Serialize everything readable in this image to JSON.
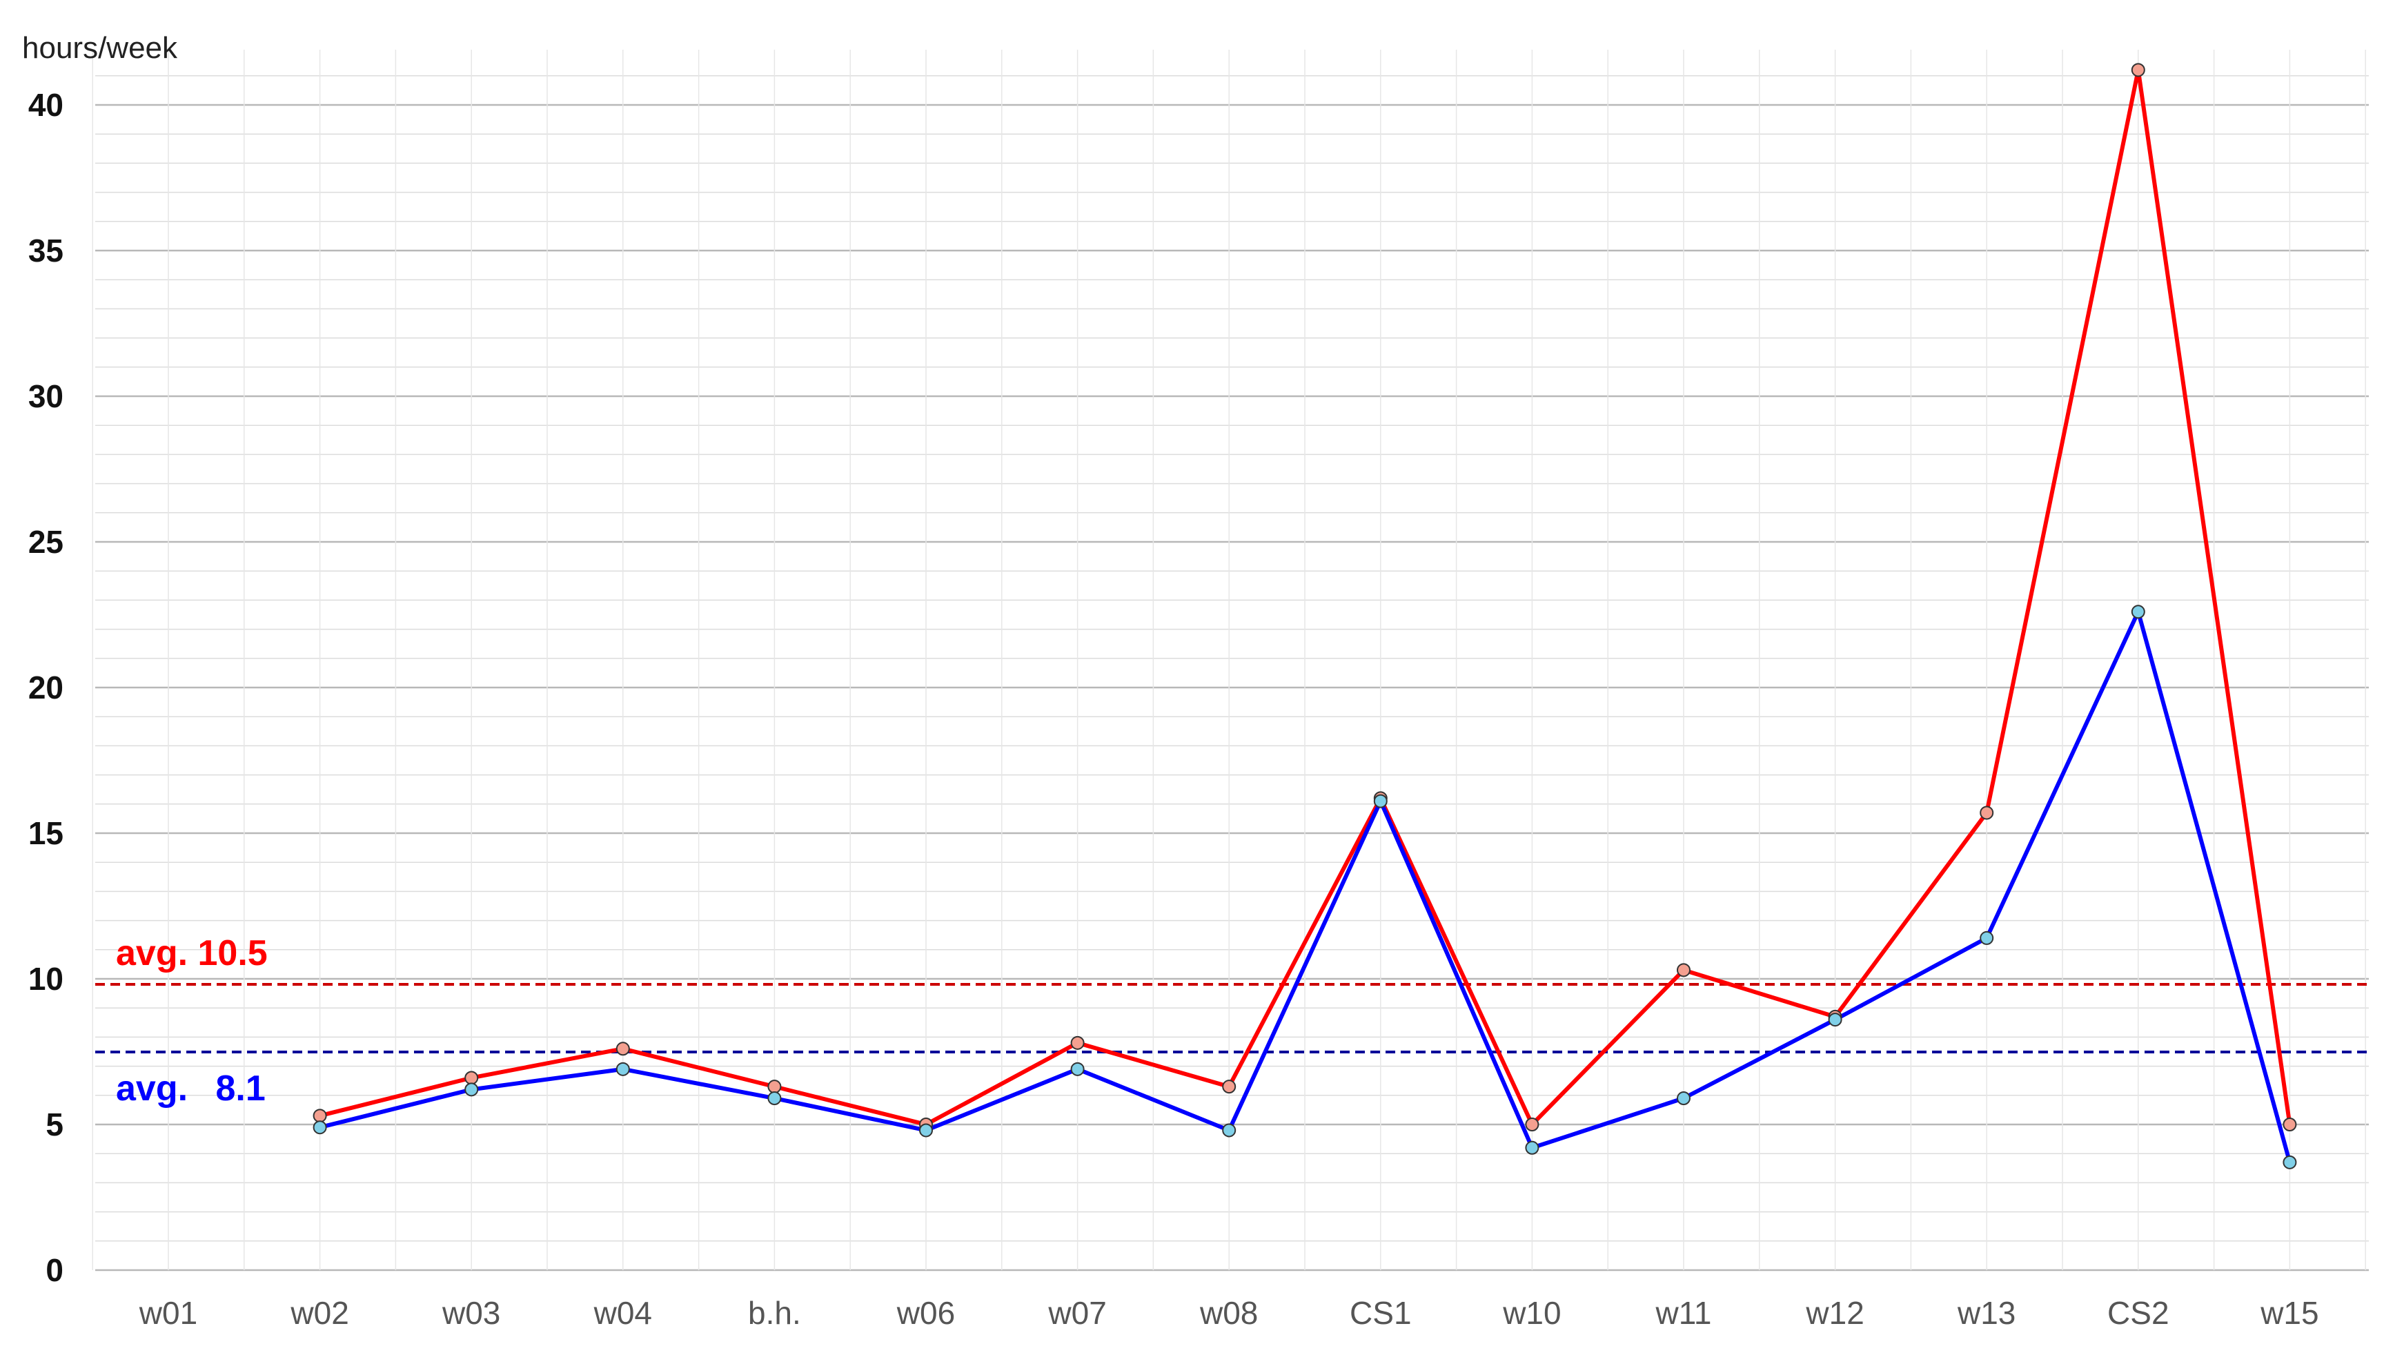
{
  "chart_data": {
    "type": "line",
    "title": "",
    "xlabel": "",
    "ylabel": "hours/week",
    "ylim": [
      0,
      41
    ],
    "yticks": [
      0,
      5,
      10,
      15,
      20,
      25,
      30,
      35,
      40
    ],
    "categories": [
      "w01",
      "w02",
      "w03",
      "w04",
      "b.h.",
      "w06",
      "w07",
      "w08",
      "CS1",
      "w10",
      "w11",
      "w12",
      "w13",
      "CS2",
      "w15"
    ],
    "grid": true,
    "series": [
      {
        "color": "#ff0000",
        "marker_color": "#f4a090",
        "values": [
          null,
          5.3,
          6.6,
          7.6,
          6.3,
          5.0,
          7.8,
          6.3,
          16.2,
          5.0,
          10.3,
          8.7,
          15.7,
          41.2,
          5.0
        ]
      },
      {
        "color": "#0000ff",
        "marker_color": "#80d0e8",
        "values": [
          null,
          4.9,
          6.2,
          6.9,
          5.9,
          4.8,
          6.9,
          4.8,
          16.1,
          4.2,
          5.9,
          8.6,
          11.4,
          22.6,
          3.7
        ]
      }
    ],
    "reference_lines": [
      {
        "value": 10.5,
        "color": "#ff0000",
        "line_color": "#cc0000",
        "label_prefix": "avg.",
        "label_value": "10.5"
      },
      {
        "value": 8.1,
        "color": "#0000ff",
        "line_color": "#000099",
        "label_prefix": "avg.",
        "label_value": "8.1"
      }
    ]
  }
}
